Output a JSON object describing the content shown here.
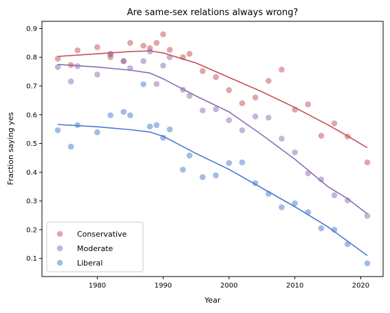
{
  "chart_data": {
    "type": "scatter",
    "title": "Are same-sex relations always wrong?",
    "xlabel": "Year",
    "ylabel": "Fraction saying yes",
    "xlim": [
      1971.6,
      2023.4
    ],
    "ylim": [
      0.037,
      0.925
    ],
    "x_ticks": [
      1980,
      1990,
      2000,
      2010,
      2020
    ],
    "y_ticks": [
      0.1,
      0.2,
      0.3,
      0.4,
      0.5,
      0.6,
      0.7,
      0.8,
      0.9
    ],
    "legend_position": "lower-left",
    "grid": false,
    "series": [
      {
        "name": "Conservative",
        "color": "#c44e52",
        "points": [
          [
            1974,
            0.795
          ],
          [
            1976,
            0.773
          ],
          [
            1977,
            0.824
          ],
          [
            1980,
            0.835
          ],
          [
            1982,
            0.8
          ],
          [
            1982,
            0.812
          ],
          [
            1984,
            0.787
          ],
          [
            1985,
            0.85
          ],
          [
            1987,
            0.84
          ],
          [
            1988,
            0.832
          ],
          [
            1989,
            0.85
          ],
          [
            1990,
            0.88
          ],
          [
            1991,
            0.826
          ],
          [
            1993,
            0.8
          ],
          [
            1994,
            0.812
          ],
          [
            1996,
            0.752
          ],
          [
            1998,
            0.731
          ],
          [
            2000,
            0.686
          ],
          [
            2002,
            0.64
          ],
          [
            2004,
            0.66
          ],
          [
            2006,
            0.718
          ],
          [
            2008,
            0.757
          ],
          [
            2010,
            0.618
          ],
          [
            2012,
            0.636
          ],
          [
            2014,
            0.527
          ],
          [
            2016,
            0.57
          ],
          [
            2018,
            0.524
          ],
          [
            2021,
            0.434
          ]
        ],
        "trend": [
          [
            1974,
            0.803
          ],
          [
            1980,
            0.812
          ],
          [
            1985,
            0.82
          ],
          [
            1988,
            0.822
          ],
          [
            1990,
            0.815
          ],
          [
            1995,
            0.78
          ],
          [
            2000,
            0.73
          ],
          [
            2005,
            0.68
          ],
          [
            2010,
            0.625
          ],
          [
            2015,
            0.565
          ],
          [
            2018,
            0.526
          ],
          [
            2021,
            0.485
          ]
        ]
      },
      {
        "name": "Moderate",
        "color": "#8c6bb1",
        "points": [
          [
            1974,
            0.766
          ],
          [
            1976,
            0.716
          ],
          [
            1977,
            0.769
          ],
          [
            1980,
            0.74
          ],
          [
            1982,
            0.81
          ],
          [
            1984,
            0.786
          ],
          [
            1985,
            0.762
          ],
          [
            1987,
            0.787
          ],
          [
            1988,
            0.82
          ],
          [
            1989,
            0.707
          ],
          [
            1990,
            0.771
          ],
          [
            1991,
            0.8
          ],
          [
            1993,
            0.687
          ],
          [
            1994,
            0.666
          ],
          [
            1996,
            0.615
          ],
          [
            1998,
            0.619
          ],
          [
            2000,
            0.581
          ],
          [
            2002,
            0.546
          ],
          [
            2004,
            0.594
          ],
          [
            2006,
            0.59
          ],
          [
            2008,
            0.517
          ],
          [
            2010,
            0.469
          ],
          [
            2012,
            0.396
          ],
          [
            2014,
            0.375
          ],
          [
            2016,
            0.32
          ],
          [
            2018,
            0.302
          ],
          [
            2021,
            0.248
          ]
        ],
        "trend": [
          [
            1974,
            0.775
          ],
          [
            1980,
            0.766
          ],
          [
            1985,
            0.755
          ],
          [
            1988,
            0.745
          ],
          [
            1990,
            0.725
          ],
          [
            1995,
            0.665
          ],
          [
            2000,
            0.61
          ],
          [
            2005,
            0.53
          ],
          [
            2010,
            0.445
          ],
          [
            2015,
            0.35
          ],
          [
            2018,
            0.308
          ],
          [
            2021,
            0.255
          ]
        ]
      },
      {
        "name": "Liberal",
        "color": "#4878cf",
        "points": [
          [
            1974,
            0.546
          ],
          [
            1976,
            0.489
          ],
          [
            1977,
            0.564
          ],
          [
            1980,
            0.539
          ],
          [
            1982,
            0.598
          ],
          [
            1984,
            0.61
          ],
          [
            1985,
            0.598
          ],
          [
            1987,
            0.706
          ],
          [
            1988,
            0.559
          ],
          [
            1989,
            0.564
          ],
          [
            1990,
            0.52
          ],
          [
            1991,
            0.549
          ],
          [
            1993,
            0.409
          ],
          [
            1994,
            0.458
          ],
          [
            1996,
            0.383
          ],
          [
            1998,
            0.389
          ],
          [
            2000,
            0.432
          ],
          [
            2002,
            0.434
          ],
          [
            2004,
            0.362
          ],
          [
            2006,
            0.325
          ],
          [
            2008,
            0.278
          ],
          [
            2010,
            0.292
          ],
          [
            2012,
            0.261
          ],
          [
            2014,
            0.205
          ],
          [
            2016,
            0.2
          ],
          [
            2018,
            0.15
          ],
          [
            2021,
            0.083
          ]
        ],
        "trend": [
          [
            1974,
            0.566
          ],
          [
            1980,
            0.558
          ],
          [
            1985,
            0.548
          ],
          [
            1988,
            0.54
          ],
          [
            1990,
            0.525
          ],
          [
            1995,
            0.465
          ],
          [
            2000,
            0.41
          ],
          [
            2005,
            0.345
          ],
          [
            2010,
            0.28
          ],
          [
            2015,
            0.21
          ],
          [
            2018,
            0.16
          ],
          [
            2021,
            0.11
          ]
        ]
      }
    ]
  }
}
